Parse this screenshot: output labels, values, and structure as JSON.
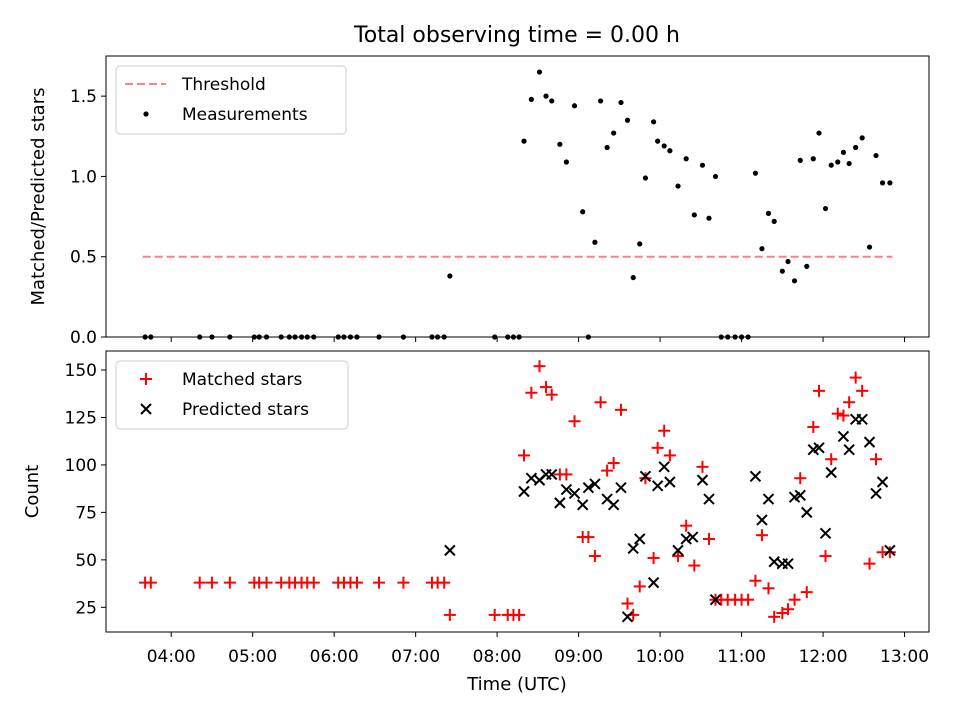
{
  "title": "Total observing time = 0.00 h",
  "xlabel": "Time (UTC)",
  "x_ticks": [
    "04:00",
    "05:00",
    "06:00",
    "07:00",
    "08:00",
    "09:00",
    "10:00",
    "11:00",
    "12:00",
    "13:00"
  ],
  "chart_data": [
    {
      "type": "scatter",
      "ylabel": "Matched/Predicted stars",
      "xlim_hours": [
        3.2,
        13.3
      ],
      "ylim": [
        0,
        1.75
      ],
      "y_ticks": [
        "0.0",
        "0.5",
        "1.0",
        "1.5"
      ],
      "legend": {
        "placement": "top-left",
        "entries": [
          "Threshold",
          "Measurements"
        ]
      },
      "threshold": {
        "name": "Threshold",
        "color": "#ff7f7f",
        "y": 0.5,
        "x_from": 3.65,
        "x_to": 12.85
      },
      "series": [
        {
          "name": "Measurements",
          "color": "#000000",
          "x": [
            3.68,
            3.75,
            4.35,
            4.5,
            4.72,
            5.02,
            5.08,
            5.17,
            5.35,
            5.45,
            5.52,
            5.6,
            5.67,
            5.75,
            6.05,
            6.12,
            6.2,
            6.28,
            6.55,
            6.85,
            7.2,
            7.27,
            7.35,
            7.42,
            7.97,
            8.13,
            8.2,
            8.27,
            8.33,
            8.42,
            8.52,
            8.6,
            8.67,
            8.77,
            8.85,
            8.95,
            9.05,
            9.12,
            9.2,
            9.27,
            9.35,
            9.43,
            9.52,
            9.6,
            9.67,
            9.75,
            9.82,
            9.92,
            9.97,
            10.05,
            10.12,
            10.22,
            10.32,
            10.42,
            10.52,
            10.6,
            10.68,
            10.75,
            10.83,
            10.92,
            11.0,
            11.08,
            11.17,
            11.25,
            11.33,
            11.4,
            11.5,
            11.57,
            11.65,
            11.72,
            11.8,
            11.88,
            11.95,
            12.03,
            12.1,
            12.18,
            12.25,
            12.32,
            12.4,
            12.48,
            12.57,
            12.65,
            12.73,
            12.82
          ],
          "y": [
            0.0,
            0.0,
            0.0,
            0.0,
            0.0,
            0.0,
            0.0,
            0.0,
            0.0,
            0.0,
            0.0,
            0.0,
            0.0,
            0.0,
            0.0,
            0.0,
            0.0,
            0.0,
            0.0,
            0.0,
            0.0,
            0.0,
            0.0,
            0.38,
            0.0,
            0.0,
            0.0,
            0.0,
            1.22,
            1.48,
            1.65,
            1.5,
            1.47,
            1.2,
            1.09,
            1.44,
            0.78,
            0.0,
            0.59,
            1.47,
            1.18,
            1.27,
            1.46,
            1.35,
            0.37,
            0.58,
            0.99,
            1.34,
            1.22,
            1.19,
            1.16,
            0.94,
            1.11,
            0.76,
            1.07,
            0.74,
            1.0,
            0.0,
            0.0,
            0.0,
            0.0,
            0.0,
            1.02,
            0.55,
            0.77,
            0.72,
            0.41,
            0.47,
            0.35,
            1.1,
            0.44,
            1.11,
            1.27,
            0.8,
            1.07,
            1.09,
            1.15,
            1.08,
            1.18,
            1.24,
            0.56,
            1.13,
            0.96,
            0.96
          ]
        }
      ]
    },
    {
      "type": "scatter",
      "ylabel": "Count",
      "xlim_hours": [
        3.2,
        13.3
      ],
      "ylim": [
        12,
        160
      ],
      "y_ticks": [
        "25",
        "50",
        "75",
        "100",
        "125",
        "150"
      ],
      "legend": {
        "placement": "top-left",
        "entries": [
          "Matched stars",
          "Predicted stars"
        ]
      },
      "series": [
        {
          "name": "Matched stars",
          "marker": "plus",
          "color": "#ff0000",
          "x": [
            3.68,
            3.75,
            4.35,
            4.5,
            4.72,
            5.02,
            5.08,
            5.17,
            5.35,
            5.45,
            5.52,
            5.6,
            5.67,
            5.75,
            6.05,
            6.12,
            6.2,
            6.28,
            6.55,
            6.85,
            7.2,
            7.27,
            7.35,
            7.42,
            7.97,
            8.13,
            8.2,
            8.27,
            8.33,
            8.42,
            8.52,
            8.6,
            8.67,
            8.77,
            8.85,
            8.95,
            9.05,
            9.12,
            9.2,
            9.27,
            9.35,
            9.43,
            9.52,
            9.6,
            9.67,
            9.75,
            9.82,
            9.92,
            9.97,
            10.05,
            10.12,
            10.22,
            10.32,
            10.42,
            10.52,
            10.6,
            10.68,
            10.75,
            10.83,
            10.92,
            11.0,
            11.08,
            11.17,
            11.25,
            11.33,
            11.4,
            11.5,
            11.57,
            11.65,
            11.72,
            11.8,
            11.88,
            11.95,
            12.03,
            12.1,
            12.18,
            12.25,
            12.32,
            12.4,
            12.48,
            12.57,
            12.65,
            12.73,
            12.82
          ],
          "y": [
            38,
            38,
            38,
            38,
            38,
            38,
            38,
            38,
            38,
            38,
            38,
            38,
            38,
            38,
            38,
            38,
            38,
            38,
            38,
            38,
            38,
            38,
            38,
            21,
            21,
            21,
            21,
            21,
            105,
            138,
            152,
            141,
            137,
            95,
            95,
            123,
            62,
            62,
            52,
            133,
            97,
            101,
            129,
            27,
            21,
            36,
            93,
            51,
            109,
            118,
            105,
            52,
            68,
            47,
            99,
            61,
            29,
            29,
            29,
            29,
            29,
            29,
            39,
            63,
            35,
            20,
            22,
            24,
            29,
            93,
            33,
            120,
            139,
            52,
            103,
            127,
            126,
            133,
            146,
            139,
            48,
            103,
            54,
            54
          ]
        },
        {
          "name": "Predicted stars",
          "marker": "x",
          "color": "#000000",
          "x": [
            7.42,
            8.33,
            8.42,
            8.52,
            8.6,
            8.67,
            8.77,
            8.85,
            8.95,
            9.05,
            9.12,
            9.2,
            9.35,
            9.43,
            9.52,
            9.6,
            9.67,
            9.75,
            9.82,
            9.92,
            9.97,
            10.05,
            10.12,
            10.22,
            10.32,
            10.4,
            10.52,
            10.6,
            10.68,
            11.17,
            11.25,
            11.33,
            11.4,
            11.5,
            11.57,
            11.65,
            11.72,
            11.8,
            11.88,
            11.95,
            12.03,
            12.1,
            12.25,
            12.32,
            12.4,
            12.48,
            12.57,
            12.65,
            12.73,
            12.82
          ],
          "y": [
            55,
            86,
            93,
            92,
            95,
            95,
            80,
            87,
            85,
            79,
            88,
            90,
            82,
            79,
            88,
            20,
            56,
            61,
            94,
            38,
            89,
            99,
            91,
            55,
            61,
            62,
            92,
            82,
            29,
            94,
            71,
            82,
            49,
            48,
            48,
            83,
            84,
            75,
            108,
            109,
            64,
            96,
            115,
            108,
            124,
            124,
            112,
            85,
            91,
            55
          ]
        }
      ]
    }
  ]
}
